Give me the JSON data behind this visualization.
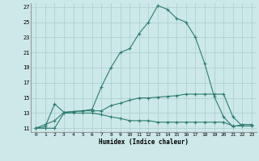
{
  "xlabel": "Humidex (Indice chaleur)",
  "ylabel": "",
  "background_color": "#cce8e8",
  "grid_color": "#aacccc",
  "line_color": "#2e7d6e",
  "xlim": [
    -0.5,
    23.5
  ],
  "ylim": [
    10.5,
    27.5
  ],
  "yticks": [
    11,
    13,
    15,
    17,
    19,
    21,
    23,
    25,
    27
  ],
  "xticks": [
    0,
    1,
    2,
    3,
    4,
    5,
    6,
    7,
    8,
    9,
    10,
    11,
    12,
    13,
    14,
    15,
    16,
    17,
    18,
    19,
    20,
    21,
    22,
    23
  ],
  "line1_x": [
    0,
    1,
    2,
    3,
    4,
    5,
    6,
    7,
    8,
    9,
    10,
    11,
    12,
    13,
    14,
    15,
    16,
    17,
    18,
    19,
    20,
    21,
    22,
    23
  ],
  "line1_y": [
    11,
    11.5,
    12.0,
    13.1,
    13.2,
    13.3,
    13.5,
    16.5,
    19.0,
    21.0,
    21.5,
    23.5,
    25.0,
    27.2,
    26.7,
    25.5,
    25.0,
    23.0,
    19.5,
    15.2,
    12.5,
    11.2,
    11.5,
    11.5
  ],
  "line2_x": [
    0,
    1,
    2,
    3,
    4,
    5,
    6,
    7,
    8,
    9,
    10,
    11,
    12,
    13,
    14,
    15,
    16,
    17,
    18,
    19,
    20,
    21,
    22,
    23
  ],
  "line2_y": [
    11.0,
    11.2,
    14.2,
    13.1,
    13.2,
    13.3,
    13.3,
    13.3,
    14.0,
    14.3,
    14.7,
    15.0,
    15.0,
    15.1,
    15.2,
    15.3,
    15.5,
    15.5,
    15.5,
    15.5,
    15.5,
    12.5,
    11.3,
    11.3
  ],
  "line3_x": [
    0,
    1,
    2,
    3,
    4,
    5,
    6,
    7,
    8,
    9,
    10,
    11,
    12,
    13,
    14,
    15,
    16,
    17,
    18,
    19,
    20,
    21,
    22,
    23
  ],
  "line3_y": [
    11.0,
    11.0,
    11.0,
    13.0,
    13.0,
    13.0,
    13.0,
    12.8,
    12.5,
    12.3,
    12.0,
    12.0,
    12.0,
    11.8,
    11.8,
    11.8,
    11.8,
    11.8,
    11.8,
    11.8,
    11.8,
    11.3,
    11.3,
    11.3
  ]
}
